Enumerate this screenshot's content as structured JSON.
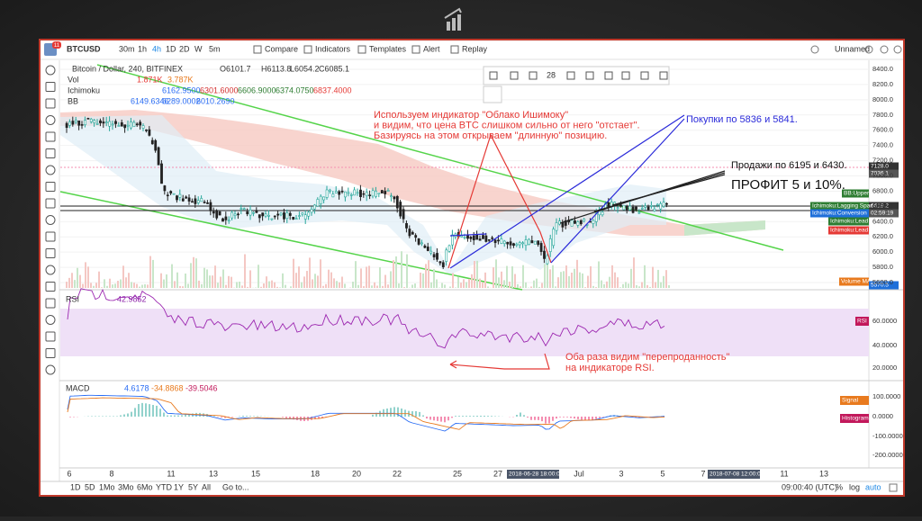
{
  "toolbar": {
    "badge": "11",
    "symbol": "BTCUSD",
    "intervals": [
      "30m",
      "1h",
      "4h",
      "1D",
      "2D",
      "W",
      "5m"
    ],
    "buttons": [
      "Compare",
      "Indicators",
      "Templates",
      "Alert",
      "Replay"
    ],
    "layout": "Unnamed"
  },
  "legend": {
    "title": "Bitcoin / Dollar, 240, BITFINEX",
    "ohlc": [
      "O6101.7",
      "H6113.8",
      "L6054.2",
      "C6085.1"
    ],
    "vol": {
      "name": "Vol",
      "values": [
        "1.871K",
        "3.787K"
      ]
    },
    "ichimoku": {
      "name": "Ichimoku",
      "values": [
        "6162.9500",
        "6301.6000",
        "6606.9000",
        "6374.0750",
        "6837.4000"
      ]
    },
    "bb": {
      "name": "BB",
      "values": [
        "6149.6346",
        "6289.0002",
        "6010.2690"
      ]
    }
  },
  "drawing_toolbar": {
    "size": "28"
  },
  "annotations": {
    "ichimoku_note": [
      "Используем индикатор \"Облако Ишимоку\"",
      "и видим, что цена BTC слишком сильно от него \"отстает\".",
      "Базируясь на этом открываем \"длинную\" позицию."
    ],
    "buys": "Покупки по 5836 и 5841.",
    "sells": "Продажи по 6195 и 6430.",
    "profit": "ПРОФИТ 5 и 10%.",
    "rsi_note": [
      "Оба раза видим \"перепроданность\"",
      "на индикаторе RSI."
    ]
  },
  "price_axis": {
    "ticks": [
      "8400.0",
      "8200.0",
      "8000.0",
      "7800.0",
      "7600.0",
      "7400.0",
      "7200.0",
      "7000.0",
      "6800.0",
      "6600.0",
      "6400.0",
      "6200.0",
      "6000.0",
      "5800.0",
      "5600.0"
    ],
    "badges": [
      "7128.0",
      "7036.1",
      "BB:Upper",
      "6619.2",
      "Ichimoku:Lagging Span",
      "Ichimoku:Conversion Line",
      "02:59:19",
      "Ichimoku:Lead 1",
      "Ichimoku:Lead 2",
      "Volume MA",
      "5570.5"
    ]
  },
  "rsi": {
    "name": "RSI",
    "value": "42.9852",
    "badge": "RSI",
    "ticks": [
      "60.0000",
      "40.0000",
      "20.0000"
    ]
  },
  "macd": {
    "name": "MACD",
    "values": [
      "4.6178",
      "-34.8868",
      "-39.5046"
    ],
    "badges": [
      "Signal",
      "Histogram"
    ],
    "ticks": [
      "100.0000",
      "0.0000",
      "-100.0000",
      "-200.0000"
    ]
  },
  "time_axis": {
    "ticks": [
      "6",
      "8",
      "11",
      "13",
      "15",
      "18",
      "20",
      "22",
      "25",
      "27",
      "Jul",
      "3",
      "5",
      "7",
      "11",
      "13"
    ],
    "cursor_label": "2018-06-28 18:00:00",
    "end_label": "2018-07-08 12:00:00"
  },
  "bottom_bar": {
    "ranges": [
      "1D",
      "5D",
      "1Mo",
      "3Mo",
      "6Mo",
      "YTD",
      "1Y",
      "5Y",
      "All"
    ],
    "goto": "Go to...",
    "clock": "09:00:40 (UTC)",
    "options": [
      "%",
      "log",
      "auto"
    ]
  }
}
